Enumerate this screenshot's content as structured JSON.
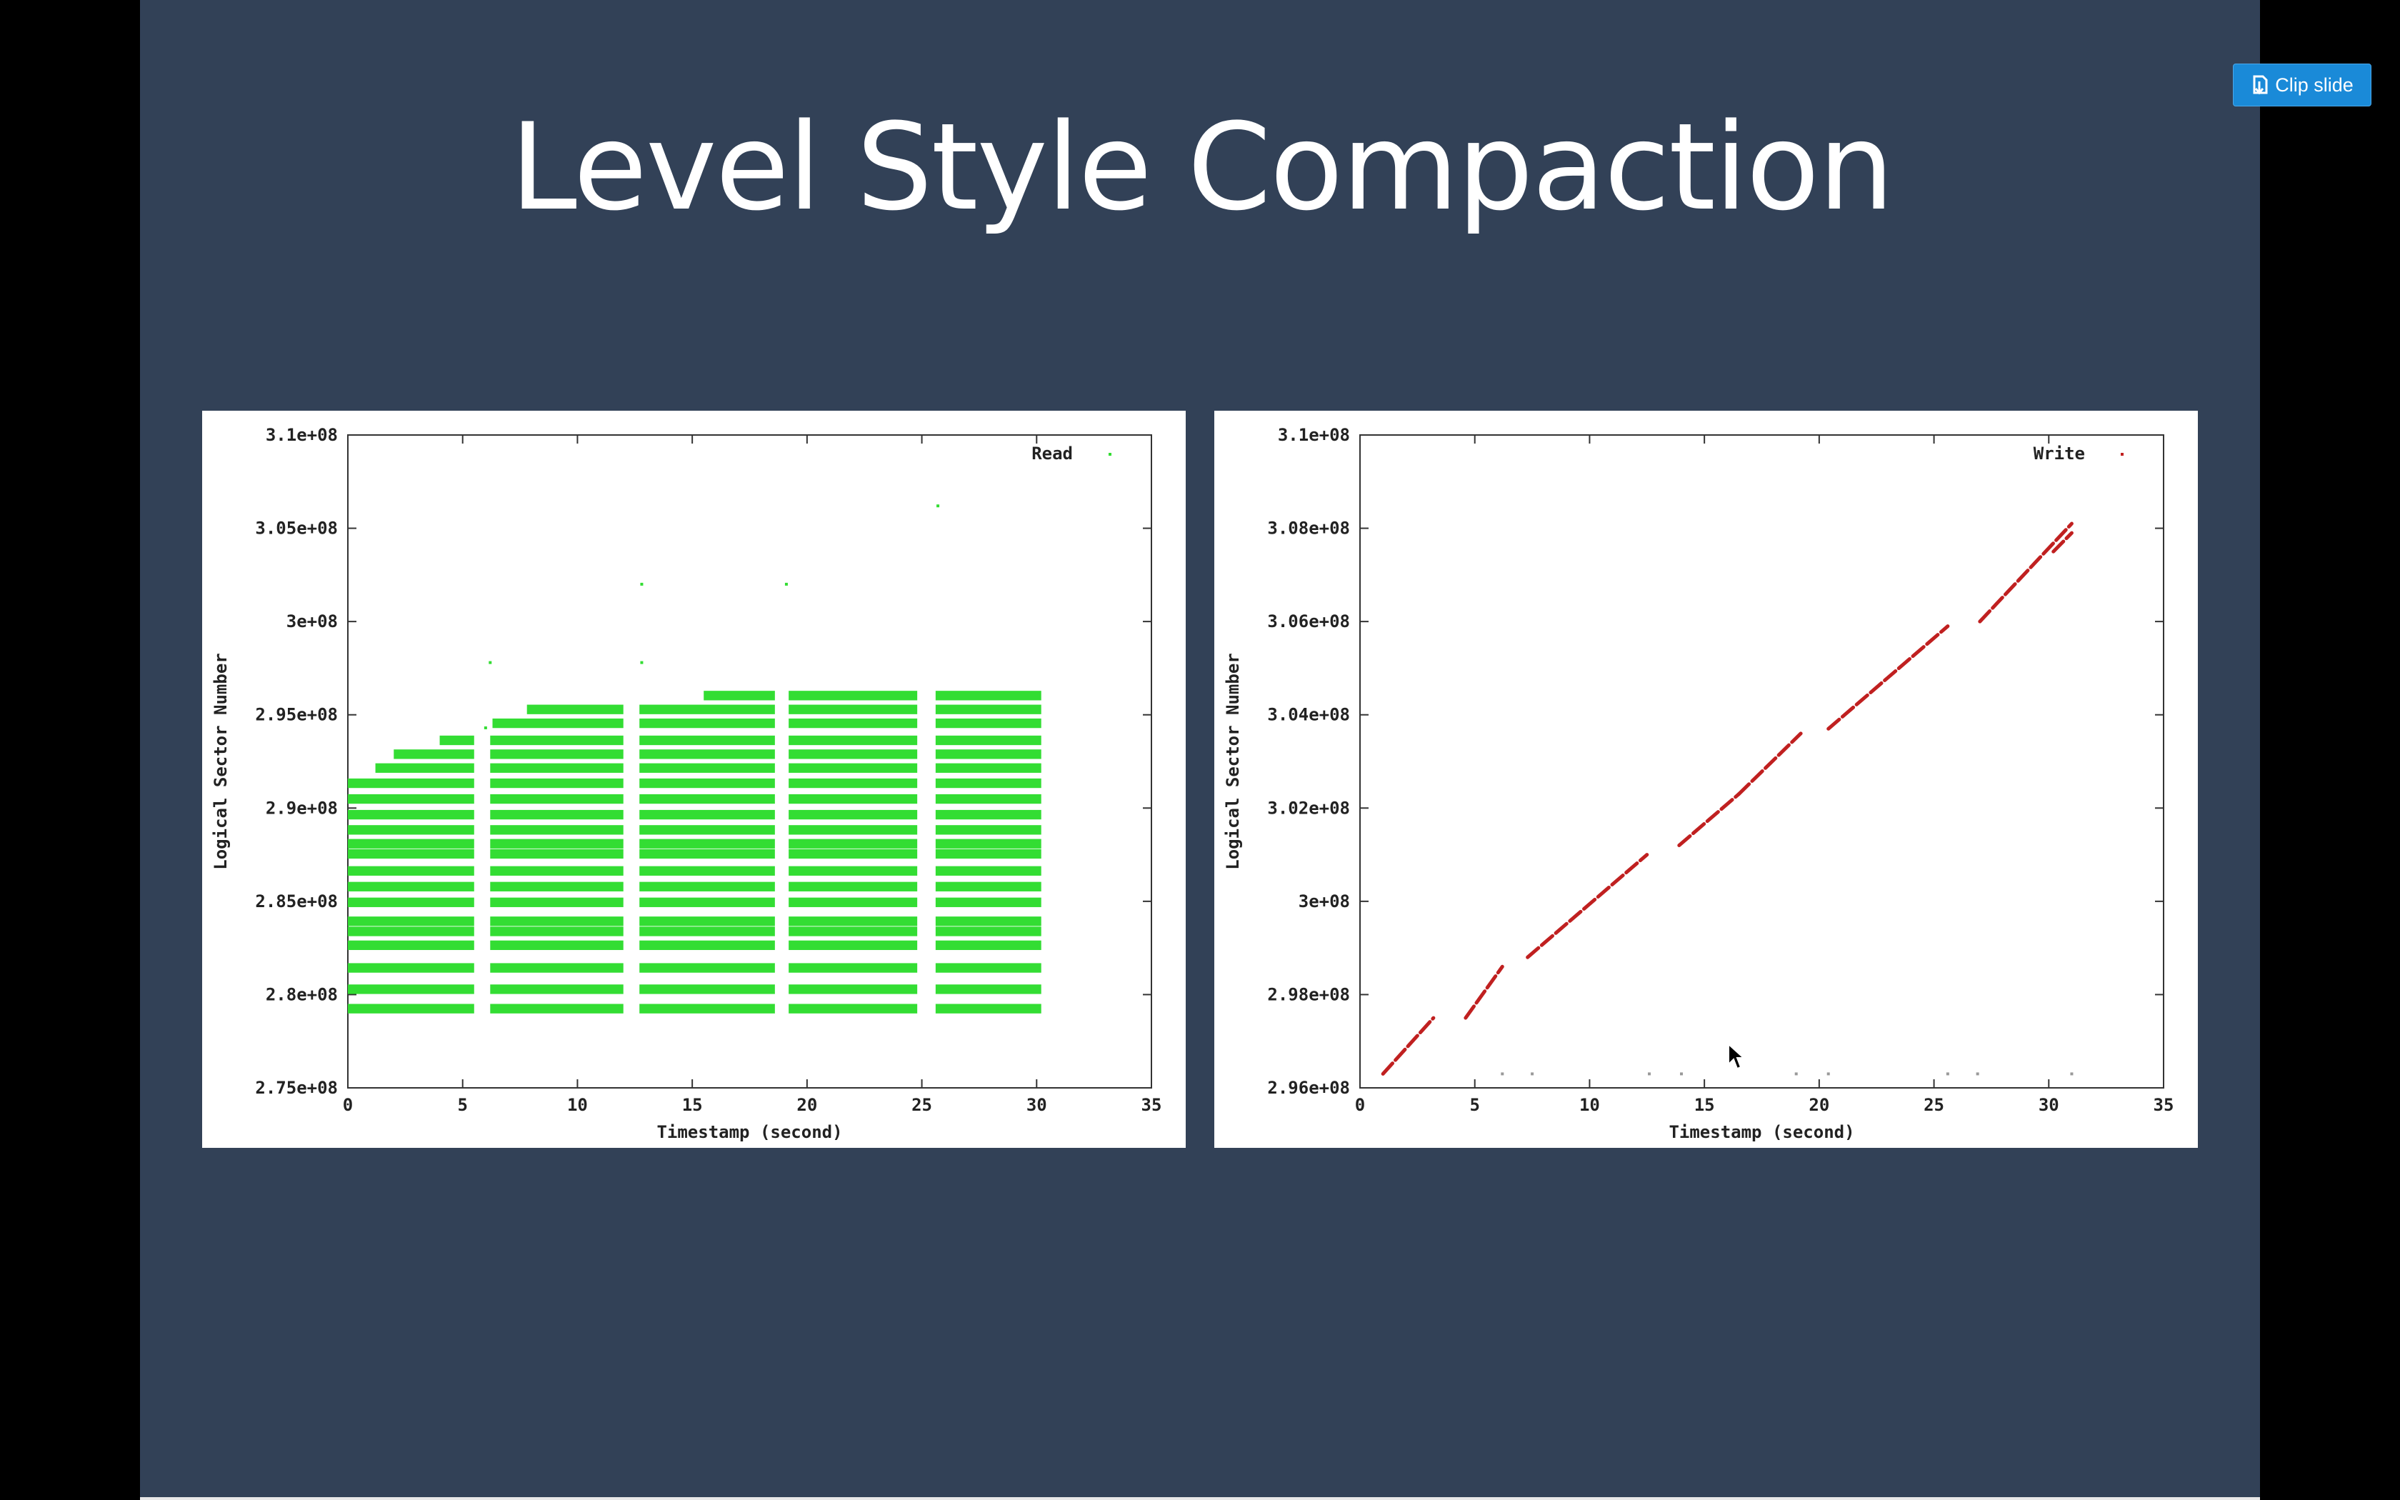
{
  "slide": {
    "title": "Level Style Compaction",
    "background_color": "#324157"
  },
  "toolbar": {
    "clip_label": "Clip slide",
    "clip_icon": "clip-icon"
  },
  "chart_data": [
    {
      "type": "scatter",
      "title": "",
      "xlabel": "Timestamp (second)",
      "ylabel": "Logical Sector Number",
      "xlim": [
        0,
        35
      ],
      "ylim": [
        275000000,
        310000000
      ],
      "xticks": [
        "0",
        "5",
        "10",
        "15",
        "20",
        "25",
        "30",
        "35"
      ],
      "yticks": [
        "2.75e+08",
        "2.8e+08",
        "2.85e+08",
        "2.9e+08",
        "2.95e+08",
        "3e+08",
        "3.05e+08",
        "3.1e+08"
      ],
      "legend": {
        "label": "Read",
        "position": "top-right"
      },
      "color": "#33dd33",
      "grid": false,
      "bursts": [
        {
          "x_start": 0,
          "x_end": 5.5
        },
        {
          "x_start": 6.2,
          "x_end": 12.0
        },
        {
          "x_start": 12.7,
          "x_end": 18.6
        },
        {
          "x_start": 19.2,
          "x_end": 24.8
        },
        {
          "x_start": 25.6,
          "x_end": 30.2
        }
      ],
      "band_sectors": [
        279200000,
        280300000,
        281500000,
        282600000,
        283400000,
        284000000,
        284900000,
        285800000,
        286700000,
        287500000,
        288100000,
        288900000,
        289600000,
        290500000,
        291400000,
        292100000,
        292900000,
        293700000,
        294500000,
        295300000,
        296100000
      ],
      "band_start_times": [
        0,
        0,
        0,
        0,
        0,
        0,
        0,
        0,
        0,
        0,
        0,
        0,
        0,
        0,
        0,
        1.2,
        2.0,
        4.0,
        6.3,
        7.8,
        15.5
      ],
      "outliers": [
        {
          "x": 6.0,
          "y": 294300000
        },
        {
          "x": 6.2,
          "y": 297800000
        },
        {
          "x": 12.8,
          "y": 297800000
        },
        {
          "x": 12.8,
          "y": 302000000
        },
        {
          "x": 19.1,
          "y": 302000000
        },
        {
          "x": 25.7,
          "y": 306200000
        }
      ]
    },
    {
      "type": "scatter",
      "title": "",
      "xlabel": "Timestamp (second)",
      "ylabel": "Logical Sector Number",
      "xlim": [
        0,
        35
      ],
      "ylim": [
        296000000,
        310000000
      ],
      "xticks": [
        "0",
        "5",
        "10",
        "15",
        "20",
        "25",
        "30",
        "35"
      ],
      "yticks": [
        "2.96e+08",
        "2.98e+08",
        "3e+08",
        "3.02e+08",
        "3.04e+08",
        "3.06e+08",
        "3.08e+08",
        "3.1e+08"
      ],
      "legend": {
        "label": "Write",
        "position": "top-right"
      },
      "color": "#c02020",
      "grid": false,
      "segments": [
        {
          "x": [
            1.0,
            3.2
          ],
          "y": [
            296300000,
            297500000
          ]
        },
        {
          "x": [
            4.6,
            6.2
          ],
          "y": [
            297500000,
            298600000
          ]
        },
        {
          "x": [
            7.3,
            12.5
          ],
          "y": [
            298800000,
            301000000
          ]
        },
        {
          "x": [
            13.9,
            16.5
          ],
          "y": [
            301200000,
            302300000
          ]
        },
        {
          "x": [
            16.5,
            19.2
          ],
          "y": [
            302300000,
            303600000
          ]
        },
        {
          "x": [
            20.4,
            25.6
          ],
          "y": [
            303700000,
            305900000
          ]
        },
        {
          "x": [
            27.0,
            31.0
          ],
          "y": [
            306000000,
            308100000
          ]
        },
        {
          "x": [
            30.2,
            31.0
          ],
          "y": [
            307500000,
            307900000
          ]
        }
      ],
      "outliers": [
        {
          "x": 6.2,
          "y": 296300000
        },
        {
          "x": 7.5,
          "y": 296300000
        },
        {
          "x": 12.6,
          "y": 296300000
        },
        {
          "x": 14.0,
          "y": 296300000
        },
        {
          "x": 19.0,
          "y": 296300000
        },
        {
          "x": 20.4,
          "y": 296300000
        },
        {
          "x": 25.6,
          "y": 296300000
        },
        {
          "x": 26.9,
          "y": 296300000
        },
        {
          "x": 31.0,
          "y": 296300000
        }
      ]
    }
  ]
}
